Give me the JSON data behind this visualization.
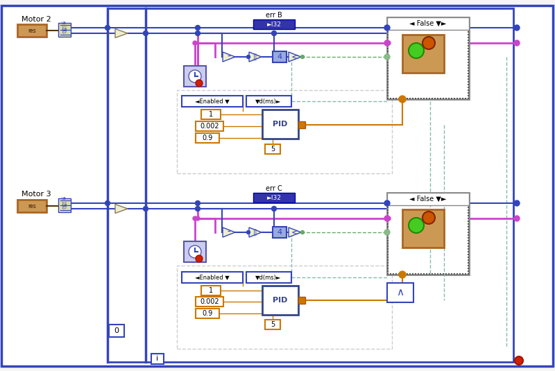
{
  "bg_color": "#f5f5f5",
  "canvas_bg": "#ffffff",
  "colors": {
    "blue": "#3344bb",
    "dark_blue": "#0000aa",
    "orange": "#cc7700",
    "pink": "#cc44cc",
    "green": "#44aa44",
    "light_green": "#88cc88",
    "teal": "#88bbaa",
    "red": "#cc2200",
    "white": "#ffffff",
    "cream": "#eeeecc",
    "gray": "#888888",
    "light_gray": "#cccccc",
    "motor_bg": "#cc9955",
    "motor_border": "#aa6622",
    "unbundle_bg": "#ddddaa",
    "unbundle_border": "#aaaaaa",
    "case_border": "#555555",
    "false_bar": "#3333aa",
    "pid_border": "#334488",
    "pid_bg": "#334488",
    "clock_bg": "#ccccee",
    "clock_border": "#5555aa",
    "node_green": "#558855"
  },
  "motor2_label": "Motor 2",
  "motor3_label": "Motor 3",
  "err_b_label": "err B",
  "err_c_label": "err C",
  "i132_label": "►I32",
  "enabled_label": "◄Enabled ▼",
  "dms_label": "▼d(ms)►",
  "false_label": "◄ False ▼►",
  "pid_label": "PID",
  "val1": "1",
  "val2": "0.002",
  "val3": "0.9",
  "val4": "5",
  "val0": "0",
  "val_i": "i"
}
